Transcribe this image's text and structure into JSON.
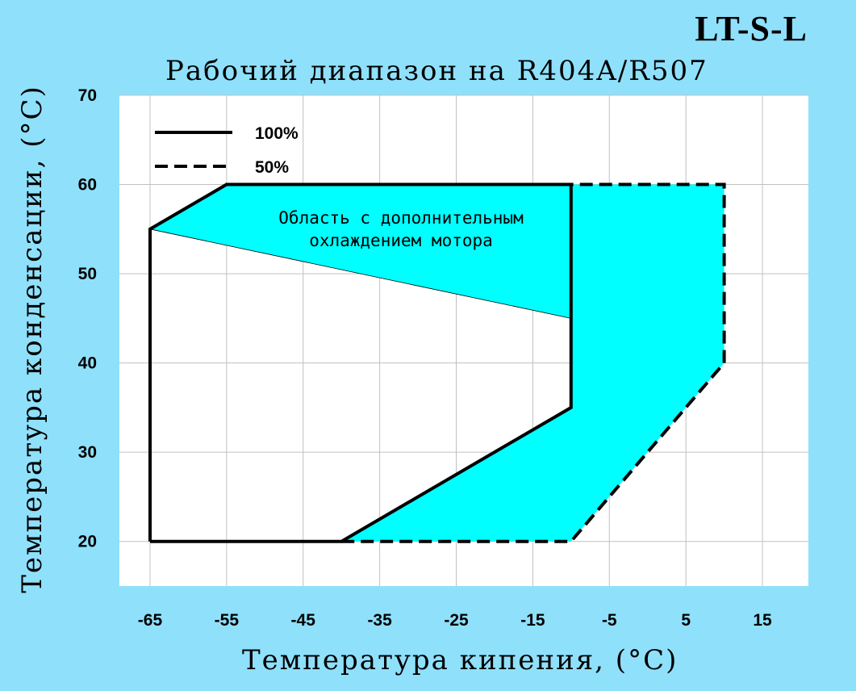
{
  "header": {
    "model": "LT-S-L",
    "title": "Рабочий диапазон на R404A/R507"
  },
  "chart_data": {
    "type": "area",
    "title": "Рабочий диапазон на R404A/R507",
    "xlabel": "Температура кипения, (°C)",
    "ylabel": "Температура конденсации, (°C)",
    "xlim": [
      -69,
      21
    ],
    "ylim": [
      15,
      70
    ],
    "x_ticks": [
      -65,
      -55,
      -45,
      -35,
      -25,
      -15,
      -5,
      5,
      15
    ],
    "y_ticks": [
      20,
      30,
      40,
      50,
      60,
      70
    ],
    "grid": true,
    "legend": {
      "position": "top-left",
      "entries": [
        {
          "label": "100%",
          "style": "solid"
        },
        {
          "label": "50%",
          "style": "dashed"
        }
      ]
    },
    "series": [
      {
        "name": "100%",
        "style": "solid",
        "points": [
          [
            -65,
            20
          ],
          [
            -40,
            20
          ],
          [
            -10,
            35
          ],
          [
            -10,
            60
          ],
          [
            -55,
            60
          ],
          [
            -65,
            55
          ],
          [
            -65,
            20
          ]
        ]
      },
      {
        "name": "50%",
        "style": "dashed",
        "points": [
          [
            -40,
            20
          ],
          [
            -10,
            20
          ],
          [
            10,
            40
          ],
          [
            10,
            60
          ],
          [
            -10,
            60
          ]
        ]
      }
    ],
    "regions": [
      {
        "label": "Область с дополнительным охлаждением мотора",
        "points": [
          [
            -65,
            55
          ],
          [
            -55,
            60
          ],
          [
            -10,
            60
          ],
          [
            -10,
            45
          ]
        ]
      },
      {
        "points": [
          [
            -40,
            20
          ],
          [
            -10,
            20
          ],
          [
            10,
            40
          ],
          [
            10,
            60
          ],
          [
            -10,
            60
          ],
          [
            -10,
            35
          ]
        ]
      }
    ],
    "annotation": {
      "line1": "Область с дополнительным",
      "line2": "охлаждением мотора"
    },
    "colors": {
      "background": "#8fe0fb",
      "plot_bg": "#ffffff",
      "fill": "#00ffff",
      "grid": "#c0c0c0",
      "line": "#000000"
    }
  }
}
